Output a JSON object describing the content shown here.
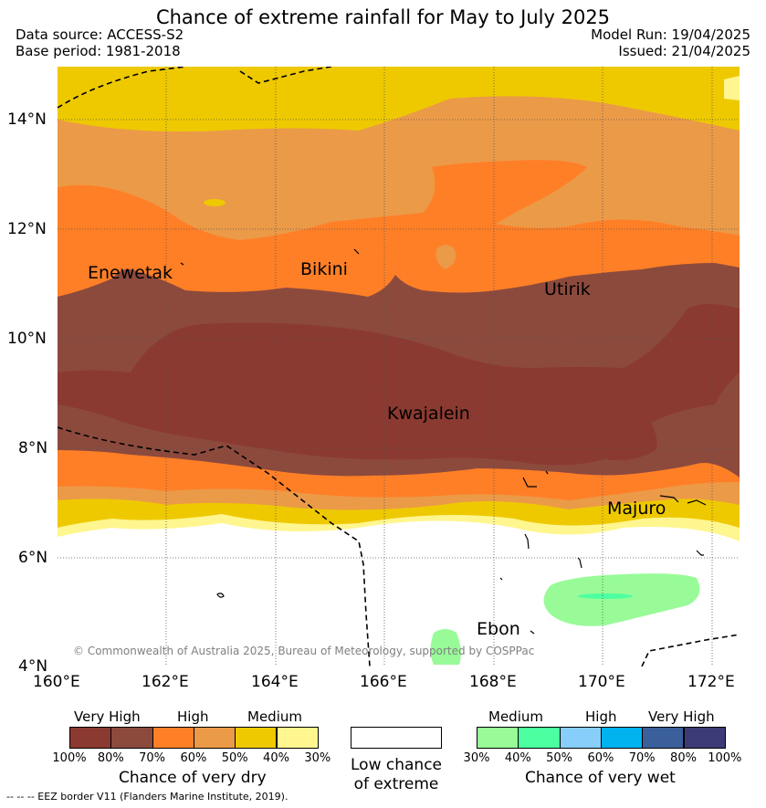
{
  "title": "Chance of extreme rainfall for May to July 2025",
  "header": {
    "data_source": "Data source: ACCESS-S2",
    "base_period": "Base period: 1981-2018",
    "model_run": "Model Run: 19/04/2025",
    "issued": "Issued: 21/04/2025"
  },
  "axes": {
    "lat_labels": [
      "14°N",
      "12°N",
      "10°N",
      "8°N",
      "6°N",
      "4°N"
    ],
    "lon_labels": [
      "160°E",
      "162°E",
      "164°E",
      "166°E",
      "168°E",
      "170°E",
      "172°E"
    ]
  },
  "places": {
    "enewetak": "Enewetak",
    "bikini": "Bikini",
    "utirik": "Utirik",
    "kwajalein": "Kwajalein",
    "majuro": "Majuro",
    "ebon": "Ebon"
  },
  "copyright": "© Commonwealth of Australia 2025, Bureau of Meteorology, supported by COSPPac",
  "legend": {
    "dry": {
      "name": "Chance of very dry",
      "levels": [
        "Very High",
        "High",
        "Medium"
      ],
      "ticks": [
        "100%",
        "80%",
        "70%",
        "60%",
        "50%",
        "40%",
        "30%"
      ],
      "colors": [
        "#8b3a31",
        "#8c4a3d",
        "#ff7f27",
        "#eb9a48",
        "#eec900",
        "#fff68f"
      ]
    },
    "neutral": {
      "name_line1": "Low chance",
      "name_line2": "of extreme",
      "color": "#ffffff"
    },
    "wet": {
      "name": "Chance of very wet",
      "levels": [
        "Medium",
        "High",
        "Very High"
      ],
      "ticks": [
        "30%",
        "40%",
        "50%",
        "60%",
        "70%",
        "80%",
        "100%"
      ],
      "colors": [
        "#98fb98",
        "#4cffa0",
        "#87cefa",
        "#00b2ee",
        "#3a5f9a",
        "#3d3a78"
      ]
    }
  },
  "footnote": "-- -- -- EEZ border V11 (Flanders Marine Institute, 2019)."
}
